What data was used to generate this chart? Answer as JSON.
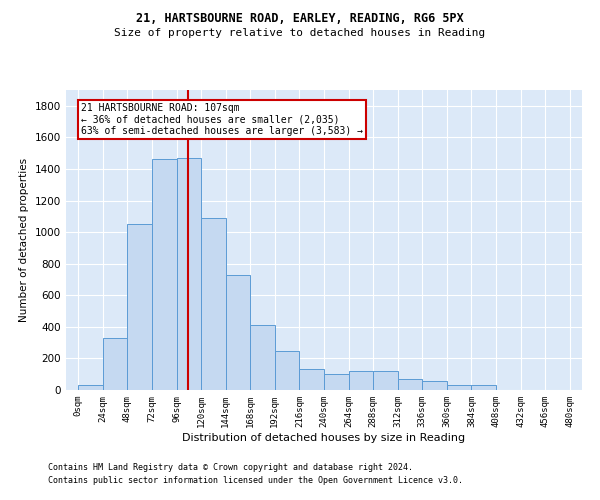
{
  "title1": "21, HARTSBOURNE ROAD, EARLEY, READING, RG6 5PX",
  "title2": "Size of property relative to detached houses in Reading",
  "xlabel": "Distribution of detached houses by size in Reading",
  "ylabel": "Number of detached properties",
  "bar_color": "#c5d9f1",
  "bar_edge_color": "#5b9bd5",
  "vline_color": "#cc0000",
  "vline_x": 107,
  "bin_width": 24,
  "bin_starts": [
    0,
    24,
    48,
    72,
    96,
    120,
    144,
    168,
    192,
    216,
    240,
    264,
    288,
    312,
    336,
    360,
    384,
    408,
    432,
    456
  ],
  "bar_heights": [
    30,
    330,
    1050,
    1460,
    1470,
    1090,
    730,
    410,
    250,
    130,
    100,
    120,
    120,
    70,
    60,
    30,
    30,
    0,
    0,
    0
  ],
  "ylim": [
    0,
    1900
  ],
  "yticks": [
    0,
    200,
    400,
    600,
    800,
    1000,
    1200,
    1400,
    1600,
    1800
  ],
  "annotation_text": "21 HARTSBOURNE ROAD: 107sqm\n← 36% of detached houses are smaller (2,035)\n63% of semi-detached houses are larger (3,583) →",
  "annotation_box_color": "#cc0000",
  "footnote1": "Contains HM Land Registry data © Crown copyright and database right 2024.",
  "footnote2": "Contains public sector information licensed under the Open Government Licence v3.0.",
  "background_color": "#dce9f8",
  "grid_color": "#ffffff",
  "tick_labels": [
    "0sqm",
    "24sqm",
    "48sqm",
    "72sqm",
    "96sqm",
    "120sqm",
    "144sqm",
    "168sqm",
    "192sqm",
    "216sqm",
    "240sqm",
    "264sqm",
    "288sqm",
    "312sqm",
    "336sqm",
    "360sqm",
    "384sqm",
    "408sqm",
    "432sqm",
    "456sqm",
    "480sqm"
  ]
}
